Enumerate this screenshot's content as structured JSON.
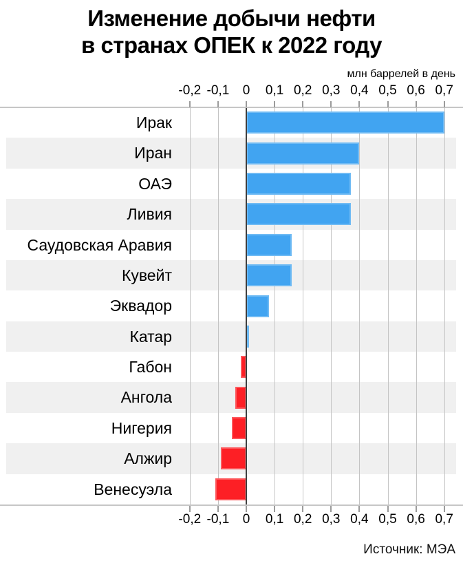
{
  "title": {
    "line1": "Изменение добычи нефти",
    "line2": "в странах ОПЕК к 2022 году"
  },
  "axis": {
    "unit_label": "млн баррелей в день",
    "tick_values": [
      -0.2,
      -0.1,
      0,
      0.1,
      0.2,
      0.3,
      0.4,
      0.5,
      0.6,
      0.7
    ],
    "tick_labels": [
      "-0,2",
      "-0,1",
      "0",
      "0,1",
      "0,2",
      "0,3",
      "0,4",
      "0,5",
      "0,6",
      "0,7"
    ]
  },
  "source": "Источник: МЭА",
  "colors": {
    "positive_bar": "#41a4f1",
    "negative_bar": "#fd1f25",
    "row_stripe": "#f0f0f0",
    "gridline": "#c4c4c4",
    "zero_line": "#3f3f3f",
    "axis_line": "#c6c6c6",
    "tick_mark": "#9b9b9b",
    "text": "#000000"
  },
  "chart_data": {
    "type": "bar",
    "orientation": "horizontal",
    "title": "Изменение добычи нефти в странах ОПЕК к 2022 году",
    "xlabel": "млн баррелей в день",
    "xlim": [
      -0.25,
      0.77
    ],
    "grid": true,
    "legend": false,
    "categories": [
      "Ирак",
      "Иран",
      "ОАЭ",
      "Ливия",
      "Саудовская Аравия",
      "Кувейт",
      "Эквадор",
      "Катар",
      "Габон",
      "Ангола",
      "Нигерия",
      "Алжир",
      "Венесуэла"
    ],
    "values": [
      0.7,
      0.4,
      0.37,
      0.37,
      0.16,
      0.16,
      0.08,
      0.01,
      -0.02,
      -0.04,
      -0.05,
      -0.09,
      -0.11
    ]
  }
}
